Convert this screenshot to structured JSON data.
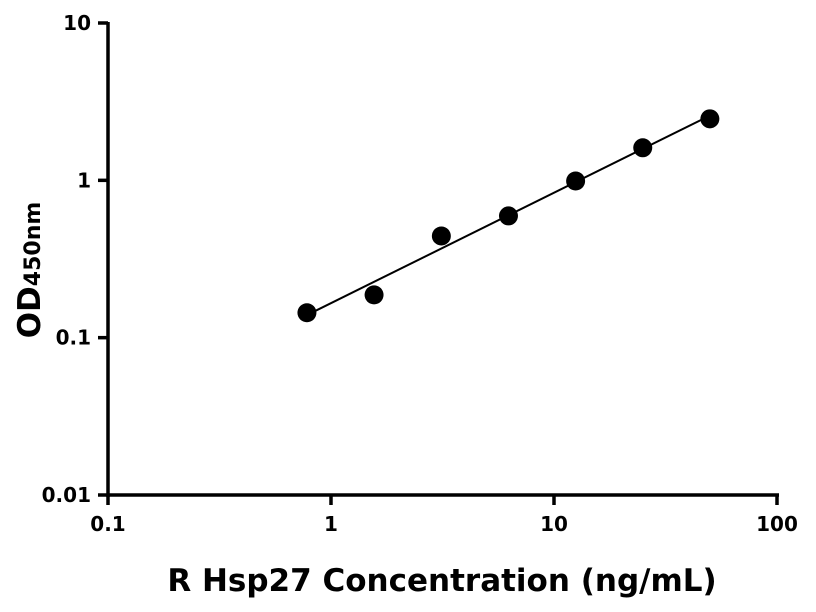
{
  "chart_data": {
    "type": "scatter",
    "xscale": "log",
    "yscale": "log",
    "xlim": [
      0.1,
      100
    ],
    "ylim": [
      0.01,
      10
    ],
    "xticks": [
      "0.1",
      "1",
      "10",
      "100"
    ],
    "yticks": [
      "0.01",
      "0.1",
      "1",
      "10"
    ],
    "xlabel": "R Hsp27 Concentration (ng/mL)",
    "ylabel_main": "OD",
    "ylabel_sub": "450nm",
    "grid": false,
    "fit_line": "log-log linear",
    "x": [
      0.78,
      1.56,
      3.125,
      6.25,
      12.5,
      25,
      50
    ],
    "y": [
      0.144,
      0.187,
      0.443,
      0.594,
      0.99,
      1.61,
      2.46
    ],
    "marker_color": "#000000"
  }
}
